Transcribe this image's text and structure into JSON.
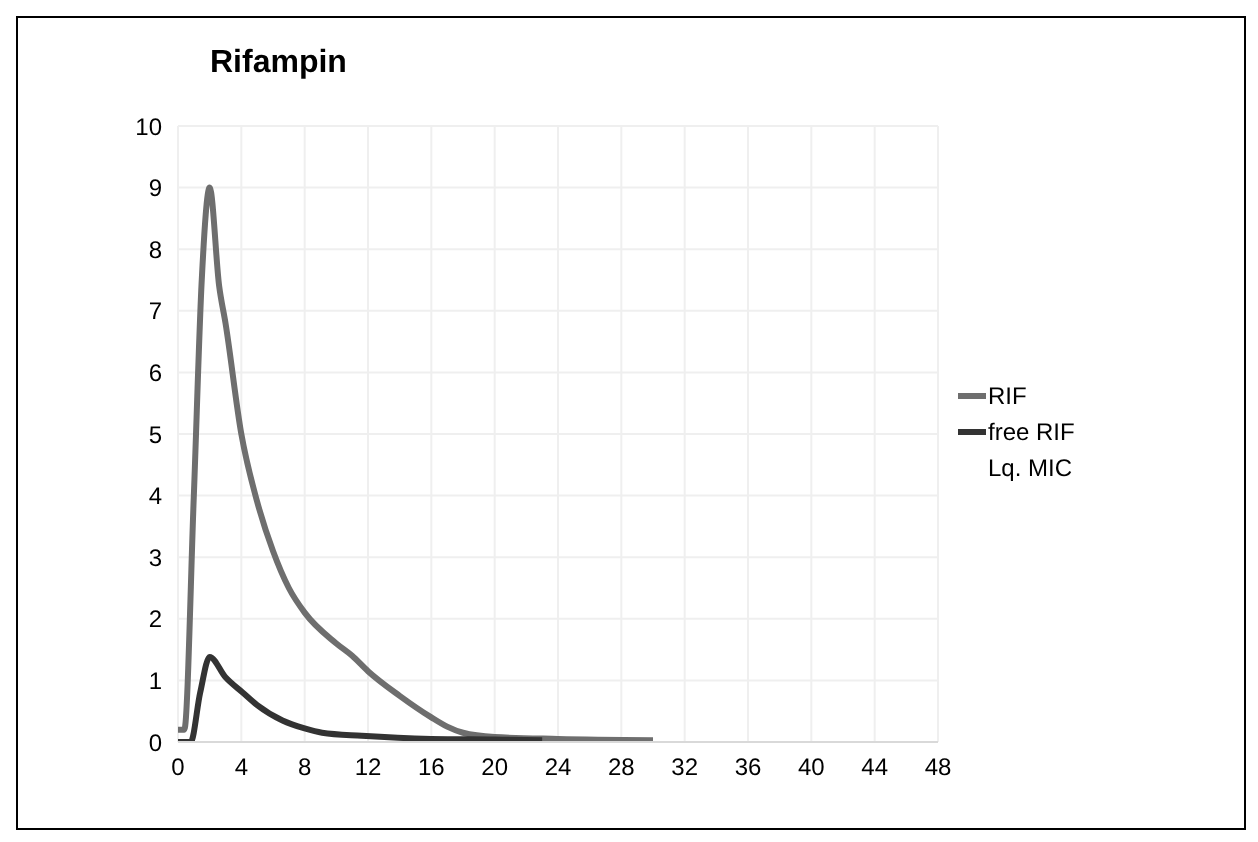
{
  "chart_data": {
    "type": "line",
    "title": "Rifampin",
    "xlim": [
      0,
      48
    ],
    "xticks": [
      0,
      4,
      8,
      12,
      16,
      20,
      24,
      28,
      32,
      36,
      40,
      44,
      48
    ],
    "ylim": [
      0,
      10
    ],
    "yticks": [
      0,
      1,
      2,
      3,
      4,
      5,
      6,
      7,
      8,
      9,
      10
    ],
    "grid": true,
    "legend": "right",
    "marker": "none",
    "line_style": "solid",
    "series": [
      {
        "name": "RIF",
        "color": "#6e6e6e",
        "x": [
          0,
          0.4,
          1,
          1.5,
          2,
          2.6,
          3,
          4,
          5,
          6,
          7,
          8,
          10,
          11,
          12,
          14,
          16,
          17,
          18,
          20,
          24,
          30
        ],
        "values": [
          0.2,
          0.2,
          4,
          7.5,
          9,
          7.4,
          6.8,
          5,
          3.9,
          3.1,
          2.5,
          2.1,
          1.6,
          1.4,
          1.15,
          0.75,
          0.4,
          0.25,
          0.15,
          0.08,
          0.05,
          0.03
        ]
      },
      {
        "name": "free RIF",
        "color": "#333333",
        "x": [
          0,
          0.8,
          1.4,
          2,
          3,
          4.1,
          5,
          6.6,
          8,
          9.1,
          11.6,
          16,
          20,
          23
        ],
        "values": [
          0,
          0,
          0.8,
          1.38,
          1.05,
          0.8,
          0.6,
          0.35,
          0.22,
          0.15,
          0.1,
          0.05,
          0.04,
          0.03
        ]
      },
      {
        "name": "Lq. MIC"
      }
    ]
  }
}
